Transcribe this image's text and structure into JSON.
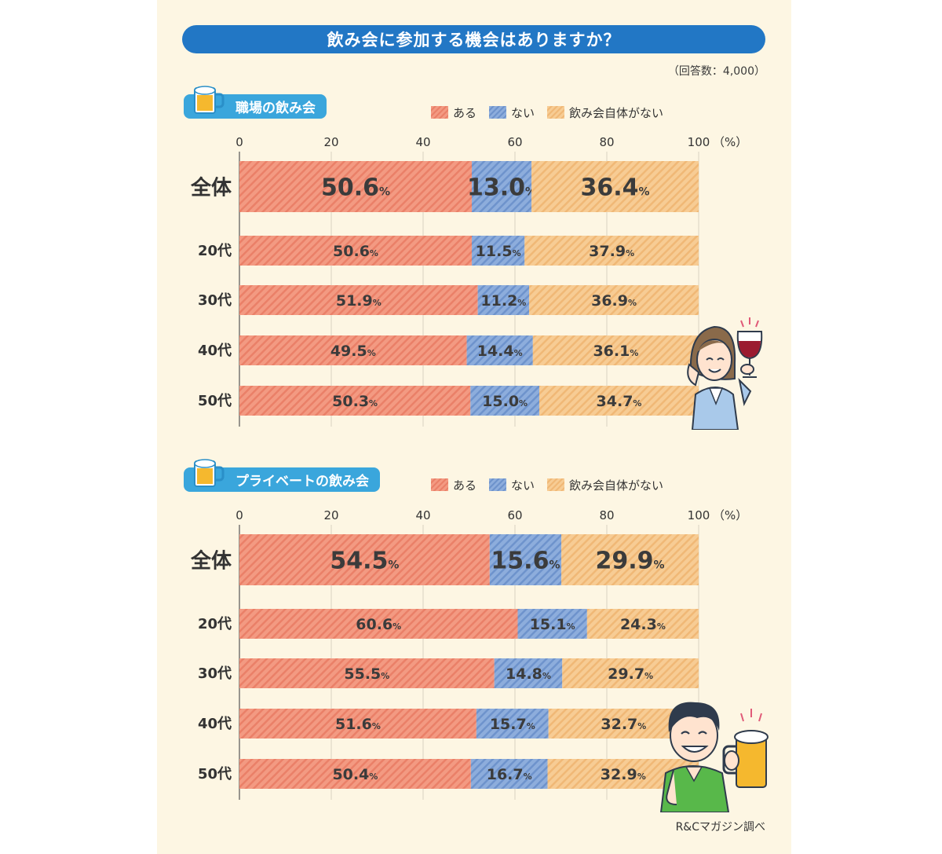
{
  "title": "飲み会に参加する機会はありますか？",
  "respondents": "（回答数：4,000）",
  "source": "R&Cマガジン調べ",
  "unit_label": "（%）",
  "legend": [
    "ある",
    "ない",
    "飲み会自体がない"
  ],
  "colors": {
    "aru": "#f39a82",
    "nai": "#8daddc",
    "jitai_nai": "#f7cc94",
    "title_bg": "#2277c5",
    "section_bg": "#3aa6dc"
  },
  "icons": [
    "beer-mug-icon",
    "woman-with-wine-illustration",
    "man-with-beer-illustration"
  ],
  "chart_data": [
    {
      "type": "bar",
      "title": "職場の飲み会",
      "orientation": "horizontal-stacked",
      "xlim": [
        0,
        100
      ],
      "ticks": [
        0,
        20,
        40,
        60,
        80,
        100
      ],
      "tick_labels": [
        "0",
        "20",
        "40",
        "60",
        "80",
        "100"
      ],
      "categories": [
        "全体",
        "20代",
        "30代",
        "40代",
        "50代"
      ],
      "series": [
        {
          "name": "ある",
          "values": [
            50.6,
            50.6,
            51.9,
            49.5,
            50.3
          ]
        },
        {
          "name": "ない",
          "values": [
            13.0,
            11.5,
            11.2,
            14.4,
            15.0
          ]
        },
        {
          "name": "飲み会自体がない",
          "values": [
            36.4,
            37.9,
            36.9,
            36.1,
            34.7
          ]
        }
      ],
      "legend_position": "top"
    },
    {
      "type": "bar",
      "title": "プライベートの飲み会",
      "orientation": "horizontal-stacked",
      "xlim": [
        0,
        100
      ],
      "ticks": [
        0,
        20,
        40,
        60,
        80,
        100
      ],
      "tick_labels": [
        "0",
        "20",
        "40",
        "60",
        "80",
        "100"
      ],
      "categories": [
        "全体",
        "20代",
        "30代",
        "40代",
        "50代"
      ],
      "series": [
        {
          "name": "ある",
          "values": [
            54.5,
            60.6,
            55.5,
            51.6,
            50.4
          ]
        },
        {
          "name": "ない",
          "values": [
            15.6,
            15.1,
            14.8,
            15.7,
            16.7
          ]
        },
        {
          "name": "飲み会自体がない",
          "values": [
            29.9,
            24.3,
            29.7,
            32.7,
            32.9
          ]
        }
      ],
      "legend_position": "top"
    }
  ]
}
